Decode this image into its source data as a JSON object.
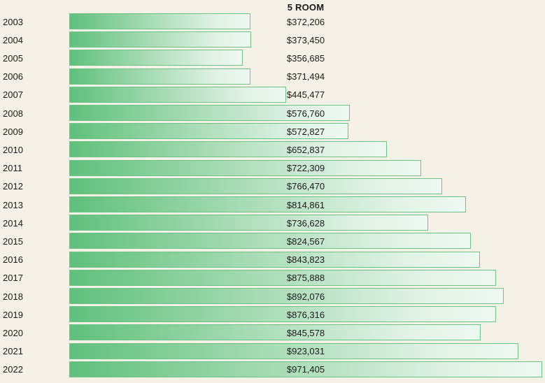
{
  "chart_data": {
    "type": "bar",
    "orientation": "horizontal",
    "title": "5 ROOM",
    "xlabel": "",
    "ylabel": "",
    "grid": false,
    "colors": {
      "bar_start": "#5fc07b",
      "bar_end": "#eef8f1",
      "bar_border": "#6cc584",
      "background": "#f5f1e6"
    },
    "categories": [
      "2003",
      "2004",
      "2005",
      "2006",
      "2007",
      "2008",
      "2009",
      "2010",
      "2011",
      "2012",
      "2013",
      "2014",
      "2015",
      "2016",
      "2017",
      "2018",
      "2019",
      "2020",
      "2021",
      "2022"
    ],
    "values": [
      372206,
      373450,
      356685,
      371494,
      445477,
      576760,
      572827,
      652837,
      722309,
      766470,
      814861,
      736628,
      824567,
      843823,
      875888,
      892076,
      876316,
      845578,
      923031,
      971405
    ],
    "value_labels": [
      "$372,206",
      "$373,450",
      "$356,685",
      "$371,494",
      "$445,477",
      "$576,760",
      "$572,827",
      "$652,837",
      "$722,309",
      "$766,470",
      "$814,861",
      "$736,628",
      "$824,567",
      "$843,823",
      "$875,888",
      "$892,076",
      "$876,316",
      "$845,578",
      "$923,031",
      "$971,405"
    ]
  }
}
